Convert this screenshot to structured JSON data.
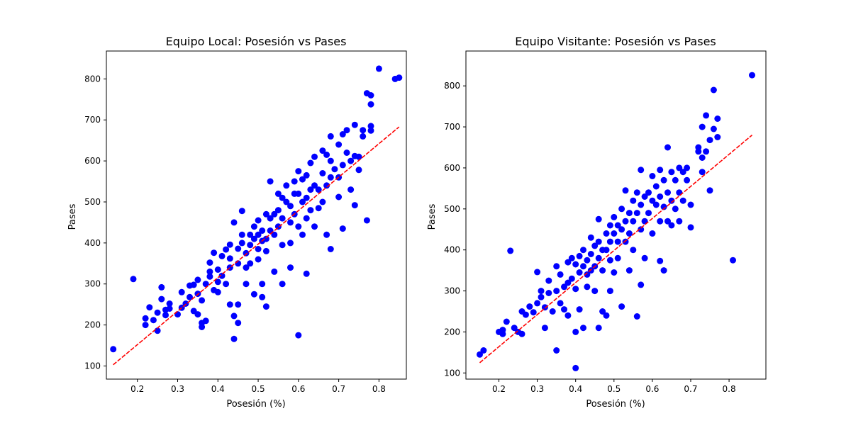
{
  "chart_data": [
    {
      "type": "scatter",
      "title": "Equipo Local: Posesión vs Pases",
      "xlabel": "Posesión (%)",
      "ylabel": "Pases",
      "xlim": [
        0.123,
        0.868
      ],
      "ylim": [
        68,
        868
      ],
      "xticks": [
        0.2,
        0.3,
        0.4,
        0.5,
        0.6,
        0.7,
        0.8
      ],
      "yticks": [
        100,
        200,
        300,
        400,
        500,
        600,
        700,
        800
      ],
      "point_color": "#0000ff",
      "trend_color": "#ff0000",
      "trend": {
        "x": [
          0.14,
          0.85
        ],
        "y": [
          103,
          683
        ]
      },
      "points": [
        [
          0.14,
          141
        ],
        [
          0.19,
          312
        ],
        [
          0.22,
          200
        ],
        [
          0.22,
          216
        ],
        [
          0.23,
          243
        ],
        [
          0.24,
          212
        ],
        [
          0.25,
          186
        ],
        [
          0.25,
          230
        ],
        [
          0.26,
          292
        ],
        [
          0.26,
          263
        ],
        [
          0.27,
          237
        ],
        [
          0.27,
          224
        ],
        [
          0.28,
          252
        ],
        [
          0.28,
          240
        ],
        [
          0.3,
          226
        ],
        [
          0.31,
          242
        ],
        [
          0.31,
          280
        ],
        [
          0.32,
          252
        ],
        [
          0.33,
          296
        ],
        [
          0.33,
          268
        ],
        [
          0.34,
          234
        ],
        [
          0.34,
          298
        ],
        [
          0.35,
          310
        ],
        [
          0.35,
          276
        ],
        [
          0.35,
          226
        ],
        [
          0.36,
          205
        ],
        [
          0.36,
          195
        ],
        [
          0.36,
          260
        ],
        [
          0.37,
          210
        ],
        [
          0.37,
          300
        ],
        [
          0.38,
          318
        ],
        [
          0.38,
          330
        ],
        [
          0.38,
          352
        ],
        [
          0.39,
          376
        ],
        [
          0.39,
          285
        ],
        [
          0.4,
          305
        ],
        [
          0.4,
          335
        ],
        [
          0.4,
          280
        ],
        [
          0.41,
          368
        ],
        [
          0.41,
          320
        ],
        [
          0.42,
          384
        ],
        [
          0.42,
          300
        ],
        [
          0.43,
          340
        ],
        [
          0.43,
          362
        ],
        [
          0.43,
          396
        ],
        [
          0.43,
          250
        ],
        [
          0.44,
          450
        ],
        [
          0.44,
          166
        ],
        [
          0.44,
          222
        ],
        [
          0.45,
          350
        ],
        [
          0.45,
          386
        ],
        [
          0.45,
          250
        ],
        [
          0.45,
          205
        ],
        [
          0.46,
          478
        ],
        [
          0.46,
          420
        ],
        [
          0.46,
          400
        ],
        [
          0.47,
          340
        ],
        [
          0.47,
          375
        ],
        [
          0.47,
          300
        ],
        [
          0.48,
          420
        ],
        [
          0.48,
          395
        ],
        [
          0.48,
          350
        ],
        [
          0.49,
          440
        ],
        [
          0.49,
          410
        ],
        [
          0.49,
          275
        ],
        [
          0.5,
          455
        ],
        [
          0.5,
          420
        ],
        [
          0.5,
          385
        ],
        [
          0.5,
          360
        ],
        [
          0.51,
          430
        ],
        [
          0.51,
          405
        ],
        [
          0.51,
          300
        ],
        [
          0.51,
          268
        ],
        [
          0.52,
          470
        ],
        [
          0.52,
          410
        ],
        [
          0.52,
          380
        ],
        [
          0.52,
          245
        ],
        [
          0.53,
          550
        ],
        [
          0.53,
          460
        ],
        [
          0.53,
          430
        ],
        [
          0.54,
          470
        ],
        [
          0.54,
          420
        ],
        [
          0.54,
          330
        ],
        [
          0.55,
          520
        ],
        [
          0.55,
          480
        ],
        [
          0.55,
          440
        ],
        [
          0.56,
          510
        ],
        [
          0.56,
          460
        ],
        [
          0.56,
          395
        ],
        [
          0.56,
          300
        ],
        [
          0.57,
          540
        ],
        [
          0.57,
          500
        ],
        [
          0.58,
          490
        ],
        [
          0.58,
          450
        ],
        [
          0.58,
          400
        ],
        [
          0.58,
          340
        ],
        [
          0.59,
          550
        ],
        [
          0.59,
          520
        ],
        [
          0.59,
          470
        ],
        [
          0.6,
          575
        ],
        [
          0.6,
          520
        ],
        [
          0.6,
          440
        ],
        [
          0.6,
          175
        ],
        [
          0.61,
          555
        ],
        [
          0.61,
          500
        ],
        [
          0.61,
          420
        ],
        [
          0.62,
          565
        ],
        [
          0.62,
          510
        ],
        [
          0.62,
          460
        ],
        [
          0.62,
          325
        ],
        [
          0.63,
          595
        ],
        [
          0.63,
          530
        ],
        [
          0.63,
          480
        ],
        [
          0.64,
          610
        ],
        [
          0.64,
          540
        ],
        [
          0.64,
          440
        ],
        [
          0.65,
          530
        ],
        [
          0.65,
          485
        ],
        [
          0.66,
          625
        ],
        [
          0.66,
          570
        ],
        [
          0.66,
          500
        ],
        [
          0.67,
          615
        ],
        [
          0.67,
          540
        ],
        [
          0.67,
          420
        ],
        [
          0.68,
          660
        ],
        [
          0.68,
          600
        ],
        [
          0.68,
          560
        ],
        [
          0.68,
          385
        ],
        [
          0.69,
          580
        ],
        [
          0.7,
          640
        ],
        [
          0.7,
          560
        ],
        [
          0.7,
          512
        ],
        [
          0.71,
          665
        ],
        [
          0.71,
          590
        ],
        [
          0.71,
          435
        ],
        [
          0.72,
          675
        ],
        [
          0.72,
          620
        ],
        [
          0.73,
          600
        ],
        [
          0.73,
          530
        ],
        [
          0.74,
          688
        ],
        [
          0.74,
          612
        ],
        [
          0.74,
          492
        ],
        [
          0.75,
          610
        ],
        [
          0.75,
          578
        ],
        [
          0.76,
          675
        ],
        [
          0.76,
          660
        ],
        [
          0.77,
          765
        ],
        [
          0.77,
          455
        ],
        [
          0.78,
          738
        ],
        [
          0.78,
          760
        ],
        [
          0.78,
          685
        ],
        [
          0.78,
          674
        ],
        [
          0.8,
          825
        ],
        [
          0.84,
          800
        ],
        [
          0.85,
          803
        ]
      ]
    },
    {
      "type": "scatter",
      "title": "Equipo Visitante: Posesión vs Pases",
      "xlabel": "Posesión (%)",
      "ylabel": "Pases",
      "xlim": [
        0.114,
        0.896
      ],
      "ylim": [
        85,
        885
      ],
      "xticks": [
        0.2,
        0.3,
        0.4,
        0.5,
        0.6,
        0.7,
        0.8
      ],
      "yticks": [
        100,
        200,
        300,
        400,
        500,
        600,
        700,
        800
      ],
      "point_color": "#0000ff",
      "trend_color": "#ff0000",
      "trend": {
        "x": [
          0.15,
          0.86
        ],
        "y": [
          125,
          680
        ]
      },
      "points": [
        [
          0.15,
          145
        ],
        [
          0.16,
          155
        ],
        [
          0.2,
          200
        ],
        [
          0.21,
          205
        ],
        [
          0.21,
          195
        ],
        [
          0.22,
          225
        ],
        [
          0.23,
          398
        ],
        [
          0.24,
          210
        ],
        [
          0.25,
          200
        ],
        [
          0.26,
          250
        ],
        [
          0.26,
          195
        ],
        [
          0.27,
          242
        ],
        [
          0.28,
          262
        ],
        [
          0.29,
          248
        ],
        [
          0.3,
          270
        ],
        [
          0.3,
          346
        ],
        [
          0.31,
          300
        ],
        [
          0.31,
          285
        ],
        [
          0.32,
          260
        ],
        [
          0.32,
          210
        ],
        [
          0.33,
          325
        ],
        [
          0.33,
          295
        ],
        [
          0.34,
          250
        ],
        [
          0.35,
          360
        ],
        [
          0.35,
          300
        ],
        [
          0.35,
          155
        ],
        [
          0.36,
          340
        ],
        [
          0.36,
          270
        ],
        [
          0.37,
          310
        ],
        [
          0.37,
          255
        ],
        [
          0.38,
          370
        ],
        [
          0.38,
          320
        ],
        [
          0.38,
          240
        ],
        [
          0.39,
          380
        ],
        [
          0.39,
          330
        ],
        [
          0.4,
          365
        ],
        [
          0.4,
          305
        ],
        [
          0.4,
          112
        ],
        [
          0.4,
          200
        ],
        [
          0.41,
          385
        ],
        [
          0.41,
          345
        ],
        [
          0.41,
          255
        ],
        [
          0.42,
          400
        ],
        [
          0.42,
          360
        ],
        [
          0.42,
          210
        ],
        [
          0.43,
          375
        ],
        [
          0.43,
          340
        ],
        [
          0.43,
          310
        ],
        [
          0.44,
          430
        ],
        [
          0.44,
          390
        ],
        [
          0.44,
          350
        ],
        [
          0.45,
          410
        ],
        [
          0.45,
          360
        ],
        [
          0.45,
          300
        ],
        [
          0.46,
          475
        ],
        [
          0.46,
          420
        ],
        [
          0.46,
          380
        ],
        [
          0.46,
          210
        ],
        [
          0.47,
          400
        ],
        [
          0.47,
          350
        ],
        [
          0.47,
          250
        ],
        [
          0.48,
          440
        ],
        [
          0.48,
          400
        ],
        [
          0.48,
          240
        ],
        [
          0.49,
          460
        ],
        [
          0.49,
          420
        ],
        [
          0.49,
          375
        ],
        [
          0.49,
          300
        ],
        [
          0.5,
          480
        ],
        [
          0.5,
          440
        ],
        [
          0.5,
          345
        ],
        [
          0.51,
          460
        ],
        [
          0.51,
          420
        ],
        [
          0.51,
          380
        ],
        [
          0.52,
          500
        ],
        [
          0.52,
          450
        ],
        [
          0.52,
          262
        ],
        [
          0.53,
          545
        ],
        [
          0.53,
          470
        ],
        [
          0.53,
          420
        ],
        [
          0.54,
          490
        ],
        [
          0.54,
          440
        ],
        [
          0.54,
          350
        ],
        [
          0.55,
          520
        ],
        [
          0.55,
          470
        ],
        [
          0.55,
          400
        ],
        [
          0.56,
          540
        ],
        [
          0.56,
          490
        ],
        [
          0.56,
          238
        ],
        [
          0.57,
          595
        ],
        [
          0.57,
          510
        ],
        [
          0.57,
          450
        ],
        [
          0.57,
          315
        ],
        [
          0.58,
          530
        ],
        [
          0.58,
          470
        ],
        [
          0.58,
          380
        ],
        [
          0.59,
          540
        ],
        [
          0.59,
          490
        ],
        [
          0.6,
          580
        ],
        [
          0.6,
          520
        ],
        [
          0.6,
          440
        ],
        [
          0.61,
          555
        ],
        [
          0.61,
          510
        ],
        [
          0.62,
          595
        ],
        [
          0.62,
          530
        ],
        [
          0.62,
          470
        ],
        [
          0.62,
          373
        ],
        [
          0.63,
          570
        ],
        [
          0.63,
          505
        ],
        [
          0.63,
          350
        ],
        [
          0.64,
          650
        ],
        [
          0.64,
          540
        ],
        [
          0.64,
          470
        ],
        [
          0.65,
          590
        ],
        [
          0.65,
          520
        ],
        [
          0.65,
          460
        ],
        [
          0.66,
          570
        ],
        [
          0.66,
          500
        ],
        [
          0.67,
          600
        ],
        [
          0.67,
          540
        ],
        [
          0.67,
          470
        ],
        [
          0.68,
          590
        ],
        [
          0.68,
          520
        ],
        [
          0.69,
          600
        ],
        [
          0.69,
          570
        ],
        [
          0.7,
          510
        ],
        [
          0.7,
          455
        ],
        [
          0.72,
          640
        ],
        [
          0.72,
          650
        ],
        [
          0.73,
          700
        ],
        [
          0.73,
          625
        ],
        [
          0.73,
          590
        ],
        [
          0.74,
          728
        ],
        [
          0.74,
          640
        ],
        [
          0.75,
          668
        ],
        [
          0.75,
          545
        ],
        [
          0.76,
          790
        ],
        [
          0.76,
          695
        ],
        [
          0.77,
          720
        ],
        [
          0.77,
          675
        ],
        [
          0.81,
          375
        ],
        [
          0.86,
          826
        ]
      ]
    }
  ]
}
